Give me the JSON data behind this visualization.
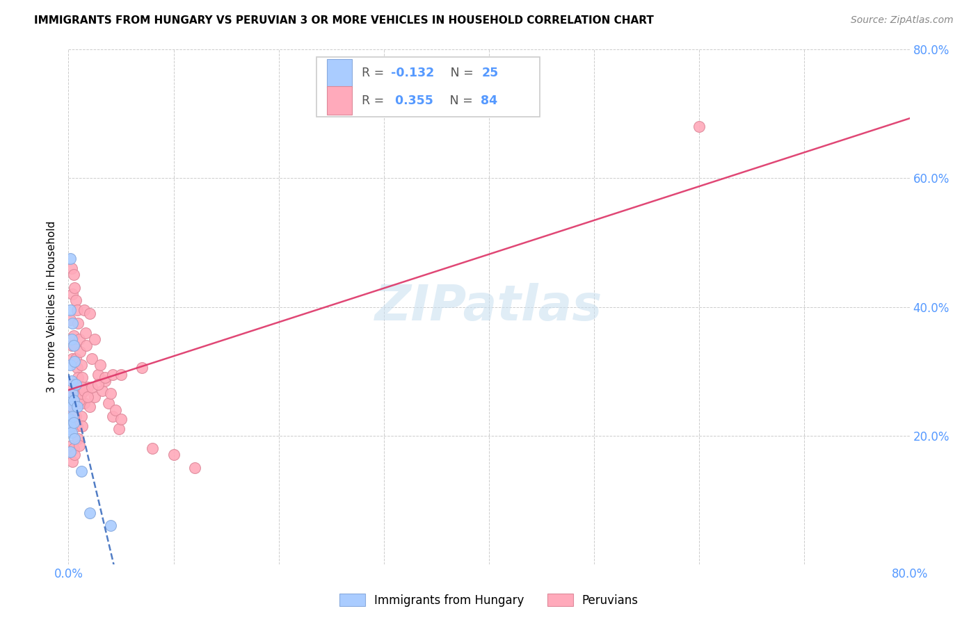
{
  "title": "IMMIGRANTS FROM HUNGARY VS PERUVIAN 3 OR MORE VEHICLES IN HOUSEHOLD CORRELATION CHART",
  "source": "Source: ZipAtlas.com",
  "tick_color": "#5599ff",
  "ylabel": "3 or more Vehicles in Household",
  "xlim": [
    0.0,
    0.8
  ],
  "ylim": [
    0.0,
    0.8
  ],
  "background_color": "#ffffff",
  "grid_color": "#cccccc",
  "hungary_color": "#aaccff",
  "hungary_edge_color": "#88aadd",
  "peru_color": "#ffaabb",
  "peru_edge_color": "#dd8899",
  "hungary_line_color": "#3366bb",
  "peru_line_color": "#dd3366",
  "legend_label_hungary": "Immigrants from Hungary",
  "legend_label_peru": "Peruvians",
  "watermark": "ZIPatlas",
  "hungary_R": "-0.132",
  "hungary_N": "25",
  "peru_R": "0.355",
  "peru_N": "84",
  "hungary_x": [
    0.001,
    0.001,
    0.001,
    0.002,
    0.002,
    0.002,
    0.002,
    0.003,
    0.003,
    0.003,
    0.003,
    0.004,
    0.004,
    0.004,
    0.005,
    0.005,
    0.005,
    0.006,
    0.006,
    0.007,
    0.008,
    0.002,
    0.012,
    0.02,
    0.04
  ],
  "hungary_y": [
    0.255,
    0.225,
    0.21,
    0.475,
    0.395,
    0.31,
    0.215,
    0.35,
    0.285,
    0.245,
    0.205,
    0.375,
    0.265,
    0.23,
    0.34,
    0.255,
    0.22,
    0.315,
    0.195,
    0.28,
    0.245,
    0.175,
    0.145,
    0.08,
    0.06
  ],
  "peru_x": [
    0.001,
    0.001,
    0.002,
    0.002,
    0.002,
    0.003,
    0.003,
    0.003,
    0.003,
    0.004,
    0.004,
    0.004,
    0.004,
    0.005,
    0.005,
    0.005,
    0.005,
    0.006,
    0.006,
    0.006,
    0.006,
    0.007,
    0.007,
    0.007,
    0.008,
    0.008,
    0.008,
    0.009,
    0.009,
    0.009,
    0.01,
    0.01,
    0.01,
    0.011,
    0.011,
    0.012,
    0.012,
    0.013,
    0.013,
    0.014,
    0.015,
    0.015,
    0.016,
    0.017,
    0.018,
    0.02,
    0.02,
    0.022,
    0.025,
    0.025,
    0.028,
    0.03,
    0.032,
    0.035,
    0.038,
    0.04,
    0.042,
    0.045,
    0.048,
    0.05,
    0.002,
    0.003,
    0.004,
    0.005,
    0.006,
    0.007,
    0.008,
    0.009,
    0.01,
    0.011,
    0.012,
    0.013,
    0.015,
    0.018,
    0.022,
    0.028,
    0.035,
    0.042,
    0.05,
    0.07,
    0.08,
    0.1,
    0.12,
    0.6
  ],
  "peru_y": [
    0.245,
    0.215,
    0.38,
    0.28,
    0.175,
    0.46,
    0.34,
    0.255,
    0.185,
    0.42,
    0.32,
    0.245,
    0.16,
    0.45,
    0.355,
    0.265,
    0.18,
    0.43,
    0.34,
    0.255,
    0.17,
    0.41,
    0.32,
    0.23,
    0.395,
    0.305,
    0.215,
    0.375,
    0.29,
    0.195,
    0.35,
    0.27,
    0.185,
    0.33,
    0.25,
    0.31,
    0.23,
    0.29,
    0.215,
    0.27,
    0.395,
    0.25,
    0.36,
    0.34,
    0.275,
    0.39,
    0.245,
    0.32,
    0.35,
    0.26,
    0.295,
    0.31,
    0.27,
    0.285,
    0.25,
    0.265,
    0.23,
    0.24,
    0.21,
    0.225,
    0.24,
    0.26,
    0.245,
    0.23,
    0.255,
    0.27,
    0.25,
    0.265,
    0.255,
    0.27,
    0.265,
    0.275,
    0.27,
    0.26,
    0.275,
    0.28,
    0.29,
    0.295,
    0.295,
    0.305,
    0.18,
    0.17,
    0.15,
    0.68
  ]
}
